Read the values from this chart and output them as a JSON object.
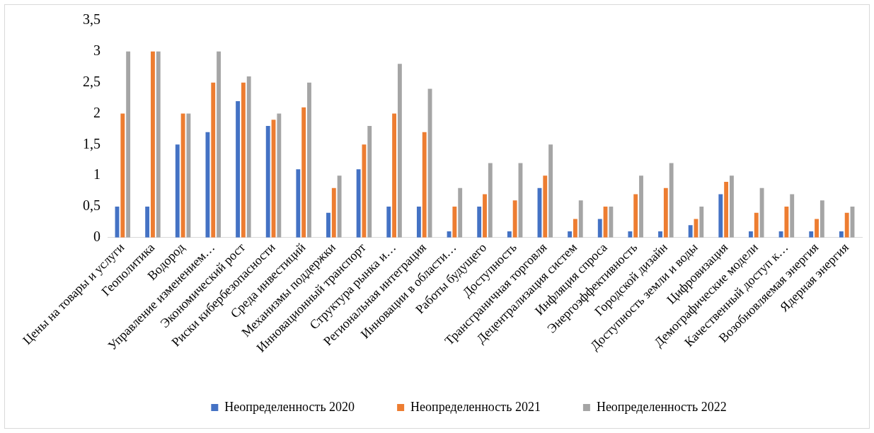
{
  "chart_data": {
    "type": "bar",
    "categories": [
      "Цены на товары и услуги",
      "Геополитика",
      "Водород",
      "Управление изменением…",
      "Экономический рост",
      "Риски кибербезопасности",
      "Среда инвестиций",
      "Механизмы поддержки",
      "Инновационный транспорт",
      "Структура рынка и…",
      "Региональная интеграция",
      "Инновации в области…",
      "Работы будущего",
      "Доступность",
      "Трансграничная торговля",
      "Децентрализация систем",
      "Инфляция спроса",
      "Энергоэффективность",
      "Городской дизайн",
      "Доступность земли и воды",
      "Цифровизация",
      "Демографические модели",
      "Качественный доступ к…",
      "Возобновляемая энергия",
      "Ядерная энергия"
    ],
    "series": [
      {
        "name": "Неопределенность 2020",
        "color": "#4472c4",
        "values": [
          0.5,
          0.5,
          1.5,
          1.7,
          2.2,
          1.8,
          1.1,
          0.4,
          1.1,
          0.5,
          0.5,
          0.1,
          0.5,
          0.1,
          0.8,
          0.1,
          0.3,
          0.1,
          0.1,
          0.2,
          0.7,
          0.1,
          0.1,
          0.1,
          0.1
        ]
      },
      {
        "name": "Неопределенность 2021",
        "color": "#ed7d31",
        "values": [
          2,
          3,
          2,
          2.5,
          2.5,
          1.9,
          2.1,
          0.8,
          1.5,
          2,
          1.7,
          0.5,
          0.7,
          0.6,
          1,
          0.3,
          0.5,
          0.7,
          0.8,
          0.3,
          0.9,
          0.4,
          0.5,
          0.3,
          0.4
        ]
      },
      {
        "name": "Неопределенность 2022",
        "color": "#a5a5a5",
        "values": [
          3,
          3,
          2,
          3,
          2.6,
          2,
          2.5,
          1,
          1.8,
          2.8,
          2.4,
          0.8,
          1.2,
          1.2,
          1.5,
          0.6,
          0.5,
          1,
          1.2,
          0.5,
          1,
          0.8,
          0.7,
          0.6,
          0.5
        ]
      }
    ],
    "ylim": [
      0,
      3.5
    ],
    "yticks": [
      0,
      {
        "value": 0.5,
        "label": "0,5"
      },
      1,
      {
        "value": 1.5,
        "label": "1,5"
      },
      2,
      {
        "value": 2.5,
        "label": "2,5"
      },
      3,
      {
        "value": 3.5,
        "label": "3,5"
      }
    ],
    "grid": false,
    "legend": "bottom"
  }
}
